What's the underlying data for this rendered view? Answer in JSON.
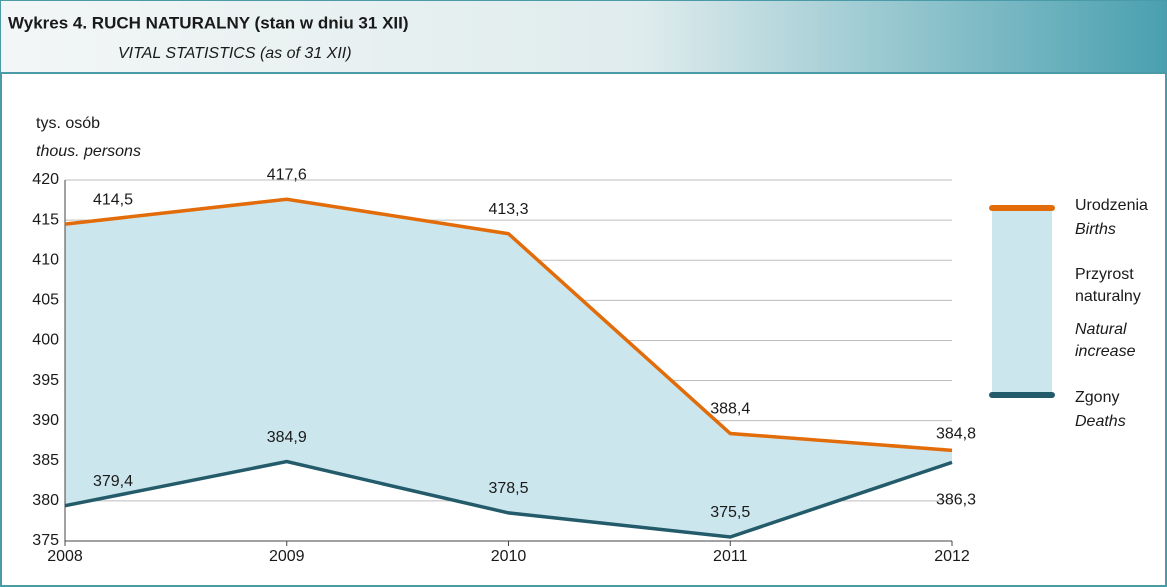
{
  "chart_data": {
    "type": "line",
    "title": "Wykres 4. RUCH NATURALNY (stan w dniu 31 XII)",
    "subtitle": "VITAL STATISTICS (as of 31 XII)",
    "y_label": "tys. osób",
    "y_label_en": "thous. persons",
    "categories": [
      "2008",
      "2009",
      "2010",
      "2011",
      "2012"
    ],
    "series": [
      {
        "name": "Urodzenia",
        "name_en": "Births",
        "color": "#e36c0a",
        "values": [
          414.5,
          417.6,
          413.3,
          388.4,
          386.3
        ],
        "value_labels": [
          "414,5",
          "417,6",
          "413,3",
          "388,4",
          "386,3"
        ]
      },
      {
        "name": "Zgony",
        "name_en": "Deaths",
        "color": "#245b6b",
        "values": [
          379.4,
          384.9,
          378.5,
          375.5,
          384.8
        ],
        "value_labels": [
          "379,4",
          "384,9",
          "378,5",
          "375,5",
          "384,8"
        ]
      }
    ],
    "fill_label": [
      "Przyrost",
      "naturalny"
    ],
    "fill_label_en": [
      "Natural",
      "increase"
    ],
    "fill_color": "#cce6ed",
    "ylim": [
      375,
      420
    ],
    "yticks": [
      375,
      380,
      385,
      390,
      395,
      400,
      405,
      410,
      415,
      420
    ],
    "grid": true
  }
}
